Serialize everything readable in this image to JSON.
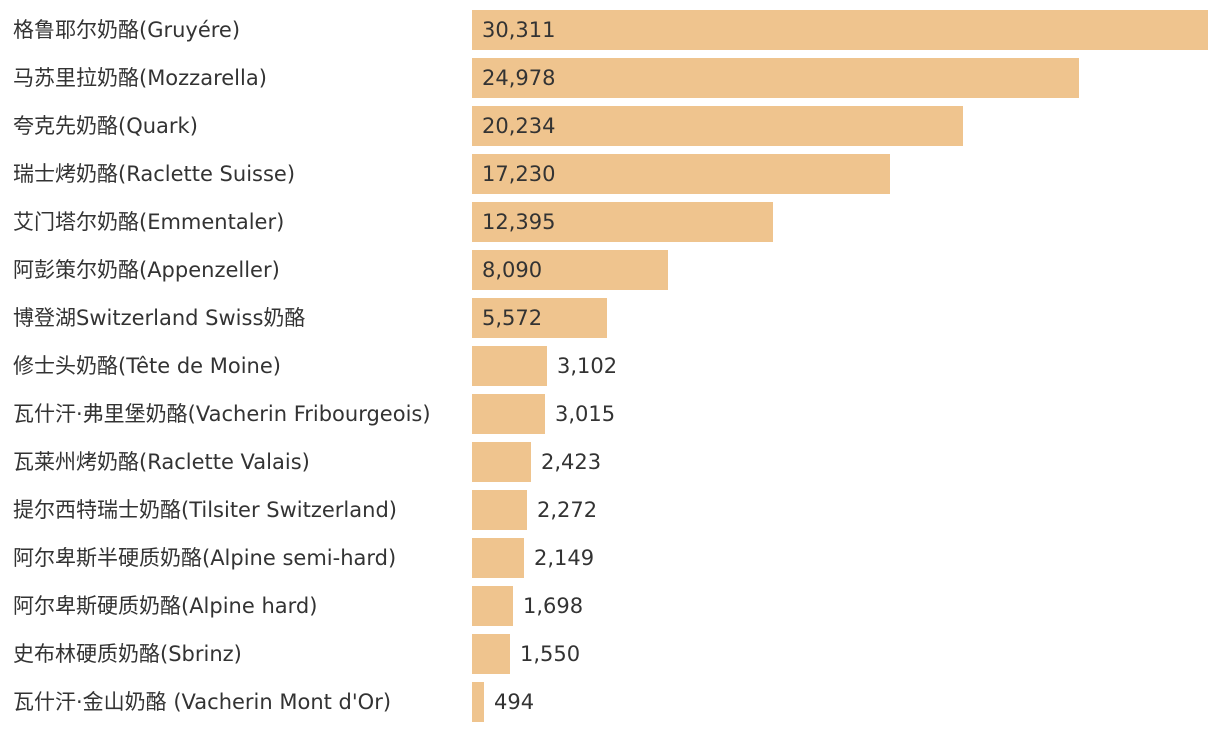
{
  "chart_data": {
    "type": "bar",
    "orientation": "horizontal",
    "bar_color": "#efc48e",
    "categories": [
      "格鲁耶尔奶酪(Gruyére)",
      "马苏里拉奶酪(Mozzarella)",
      "夸克先奶酪(Quark)",
      "瑞士烤奶酪(Raclette Suisse)",
      "艾门塔尔奶酪(Emmentaler)",
      "阿彭策尔奶酪(Appenzeller)",
      "博登湖Switzerland Swiss奶酪",
      "修士头奶酪(Tête de Moine)",
      "瓦什汗·弗里堡奶酪(Vacherin Fribourgeois)",
      "瓦莱州烤奶酪(Raclette Valais)",
      "提尔西特瑞士奶酪(Tilsiter Switzerland)",
      "阿尔卑斯半硬质奶酪(Alpine semi-hard)",
      "阿尔卑斯硬质奶酪(Alpine hard)",
      "史布林硬质奶酪(Sbrinz)",
      "瓦什汗·金山奶酪 (Vacherin Mont d'Or)"
    ],
    "values": [
      30311,
      24978,
      20234,
      17230,
      12395,
      8090,
      5572,
      3102,
      3015,
      2423,
      2272,
      2149,
      1698,
      1550,
      494
    ],
    "value_labels": [
      "30,311",
      "24,978",
      "20,234",
      "17,230",
      "12,395",
      "8,090",
      "5,572",
      "3,102",
      "3,015",
      "2,423",
      "2,272",
      "2,149",
      "1,698",
      "1,550",
      "494"
    ],
    "title": "",
    "xlabel": "",
    "ylabel": "",
    "xlim": [
      0,
      30311
    ],
    "grid": false,
    "legend": "none"
  }
}
